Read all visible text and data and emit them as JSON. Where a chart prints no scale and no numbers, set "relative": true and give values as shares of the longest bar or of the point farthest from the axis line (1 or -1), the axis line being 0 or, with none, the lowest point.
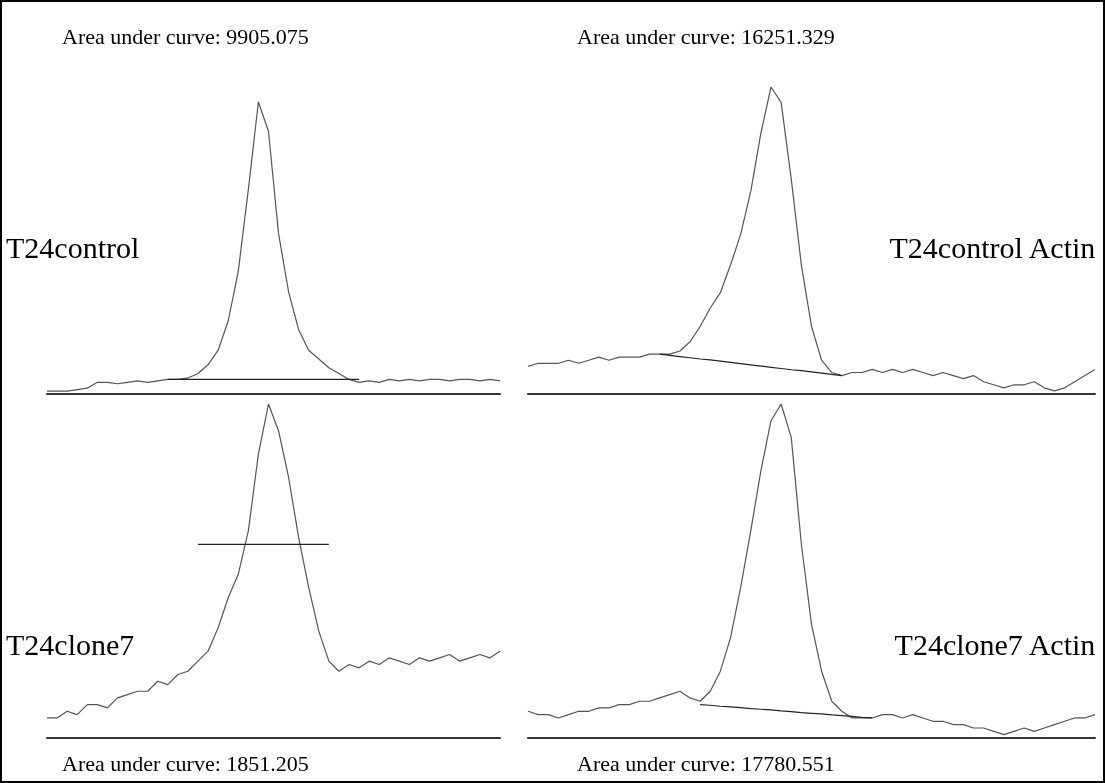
{
  "chart_data": [
    {
      "type": "line",
      "title": "Area under curve: 9905.075",
      "annotations": [
        "T24control"
      ],
      "relative": true,
      "marker": "none",
      "categories": [
        null,
        null,
        null,
        null,
        null,
        null,
        null,
        null,
        null,
        null,
        null,
        null,
        null,
        null,
        null,
        null,
        null,
        null,
        null,
        null,
        null,
        null,
        null,
        null,
        null,
        null,
        null,
        null,
        null,
        null,
        null,
        null,
        null,
        null,
        null,
        null,
        null,
        null,
        null,
        null,
        null,
        null,
        null,
        null,
        null,
        null
      ],
      "series": [
        {
          "color": "#555555",
          "values": [
            0.01,
            0.01,
            0.01,
            0.015,
            0.02,
            0.04,
            0.04,
            0.035,
            0.04,
            0.045,
            0.04,
            0.045,
            0.05,
            0.05,
            0.055,
            0.07,
            0.1,
            0.15,
            0.25,
            0.42,
            0.7,
            1,
            0.9,
            0.55,
            0.35,
            0.22,
            0.15,
            0.12,
            0.09,
            0.07,
            0.05,
            0.04,
            0.045,
            0.04,
            0.05,
            0.045,
            0.05,
            0.045,
            0.05,
            0.05,
            0.045,
            0.05,
            0.05,
            0.045,
            0.05,
            0.045
          ]
        },
        {
          "color": "#222222",
          "values": [
            null,
            null,
            null,
            null,
            null,
            null,
            null,
            null,
            null,
            null,
            null,
            null,
            0.05,
            0.05,
            0.05,
            0.05,
            0.05,
            0.05,
            0.05,
            0.05,
            0.05,
            0.05,
            0.05,
            0.05,
            0.05,
            0.05,
            0.05,
            0.05,
            0.05,
            0.05,
            0.05,
            0.05,
            null,
            null,
            null,
            null,
            null,
            null,
            null,
            null,
            null,
            null,
            null,
            null,
            null,
            null
          ]
        }
      ]
    },
    {
      "type": "line",
      "title": "Area under curve: 16251.329",
      "annotations": [
        "T24control Actin"
      ],
      "relative": true,
      "marker": "none",
      "categories": [
        null,
        null,
        null,
        null,
        null,
        null,
        null,
        null,
        null,
        null,
        null,
        null,
        null,
        null,
        null,
        null,
        null,
        null,
        null,
        null,
        null,
        null,
        null,
        null,
        null,
        null,
        null,
        null,
        null,
        null,
        null,
        null,
        null,
        null,
        null,
        null,
        null,
        null,
        null,
        null,
        null,
        null,
        null,
        null,
        null,
        null,
        null,
        null,
        null,
        null,
        null,
        null,
        null,
        null,
        null,
        null,
        null
      ],
      "series": [
        {
          "color": "#555555",
          "values": [
            0.09,
            0.1,
            0.1,
            0.1,
            0.11,
            0.1,
            0.11,
            0.12,
            0.11,
            0.12,
            0.12,
            0.12,
            0.13,
            0.13,
            0.13,
            0.14,
            0.17,
            0.22,
            0.28,
            0.33,
            0.42,
            0.52,
            0.66,
            0.85,
            1,
            0.95,
            0.7,
            0.42,
            0.22,
            0.11,
            0.07,
            0.06,
            0.07,
            0.07,
            0.08,
            0.07,
            0.08,
            0.07,
            0.08,
            0.07,
            0.06,
            0.07,
            0.06,
            0.05,
            0.06,
            0.04,
            0.03,
            0.02,
            0.03,
            0.03,
            0.04,
            0.02,
            0.01,
            0.02,
            0.04,
            0.06,
            0.08
          ]
        },
        {
          "color": "#222222",
          "values": [
            null,
            null,
            null,
            null,
            null,
            null,
            null,
            null,
            null,
            null,
            null,
            null,
            null,
            0.13,
            0.126,
            0.122,
            0.118,
            0.114,
            0.111,
            0.107,
            0.103,
            0.099,
            0.095,
            0.091,
            0.087,
            0.083,
            0.079,
            0.076,
            0.072,
            0.068,
            0.064,
            0.06,
            null,
            null,
            null,
            null,
            null,
            null,
            null,
            null,
            null,
            null,
            null,
            null,
            null,
            null,
            null,
            null,
            null,
            null,
            null,
            null,
            null,
            null,
            null,
            null,
            null
          ]
        }
      ]
    },
    {
      "type": "line",
      "title": "Area under curve: 1851.205",
      "annotations": [
        "T24clone7"
      ],
      "relative": true,
      "marker": "none",
      "categories": [
        null,
        null,
        null,
        null,
        null,
        null,
        null,
        null,
        null,
        null,
        null,
        null,
        null,
        null,
        null,
        null,
        null,
        null,
        null,
        null,
        null,
        null,
        null,
        null,
        null,
        null,
        null,
        null,
        null,
        null,
        null,
        null,
        null,
        null,
        null,
        null,
        null,
        null,
        null,
        null,
        null,
        null,
        null,
        null,
        null,
        null
      ],
      "series": [
        {
          "color": "#555555",
          "values": [
            0.06,
            0.06,
            0.08,
            0.07,
            0.1,
            0.1,
            0.09,
            0.12,
            0.13,
            0.14,
            0.14,
            0.17,
            0.16,
            0.19,
            0.2,
            0.23,
            0.26,
            0.33,
            0.42,
            0.49,
            0.62,
            0.85,
            1,
            0.92,
            0.78,
            0.6,
            0.45,
            0.32,
            0.23,
            0.2,
            0.22,
            0.21,
            0.23,
            0.22,
            0.24,
            0.23,
            0.22,
            0.24,
            0.23,
            0.24,
            0.25,
            0.23,
            0.24,
            0.25,
            0.24,
            0.26
          ]
        },
        {
          "color": "#222222",
          "values": [
            null,
            null,
            null,
            null,
            null,
            null,
            null,
            null,
            null,
            null,
            null,
            null,
            null,
            null,
            null,
            0.58,
            0.58,
            0.58,
            0.58,
            0.58,
            0.58,
            0.58,
            0.58,
            0.58,
            0.58,
            0.58,
            0.58,
            0.58,
            0.58,
            null,
            null,
            null,
            null,
            null,
            null,
            null,
            null,
            null,
            null,
            null,
            null,
            null,
            null,
            null,
            null,
            null
          ]
        }
      ]
    },
    {
      "type": "line",
      "title": "Area under curve: 17780.551",
      "annotations": [
        "T24clone7 Actin"
      ],
      "relative": true,
      "marker": "none",
      "categories": [
        null,
        null,
        null,
        null,
        null,
        null,
        null,
        null,
        null,
        null,
        null,
        null,
        null,
        null,
        null,
        null,
        null,
        null,
        null,
        null,
        null,
        null,
        null,
        null,
        null,
        null,
        null,
        null,
        null,
        null,
        null,
        null,
        null,
        null,
        null,
        null,
        null,
        null,
        null,
        null,
        null,
        null,
        null,
        null,
        null,
        null,
        null,
        null,
        null,
        null,
        null,
        null,
        null,
        null,
        null,
        null,
        null
      ],
      "series": [
        {
          "color": "#555555",
          "values": [
            0.08,
            0.07,
            0.07,
            0.06,
            0.07,
            0.08,
            0.08,
            0.09,
            0.09,
            0.1,
            0.1,
            0.11,
            0.11,
            0.12,
            0.13,
            0.14,
            0.12,
            0.11,
            0.14,
            0.2,
            0.3,
            0.45,
            0.62,
            0.8,
            0.95,
            1,
            0.9,
            0.58,
            0.34,
            0.2,
            0.11,
            0.08,
            0.06,
            0.06,
            0.06,
            0.07,
            0.07,
            0.06,
            0.07,
            0.06,
            0.05,
            0.05,
            0.04,
            0.04,
            0.03,
            0.03,
            0.02,
            0.01,
            0.02,
            0.03,
            0.02,
            0.03,
            0.04,
            0.05,
            0.06,
            0.06,
            0.07
          ]
        },
        {
          "color": "#222222",
          "values": [
            null,
            null,
            null,
            null,
            null,
            null,
            null,
            null,
            null,
            null,
            null,
            null,
            null,
            null,
            null,
            null,
            null,
            0.1,
            0.098,
            0.095,
            0.093,
            0.091,
            0.088,
            0.086,
            0.084,
            0.081,
            0.079,
            0.076,
            0.074,
            0.072,
            0.069,
            0.067,
            0.065,
            0.062,
            0.06,
            null,
            null,
            null,
            null,
            null,
            null,
            null,
            null,
            null,
            null,
            null,
            null,
            null,
            null,
            null,
            null,
            null,
            null,
            null,
            null,
            null,
            null
          ]
        }
      ]
    }
  ]
}
